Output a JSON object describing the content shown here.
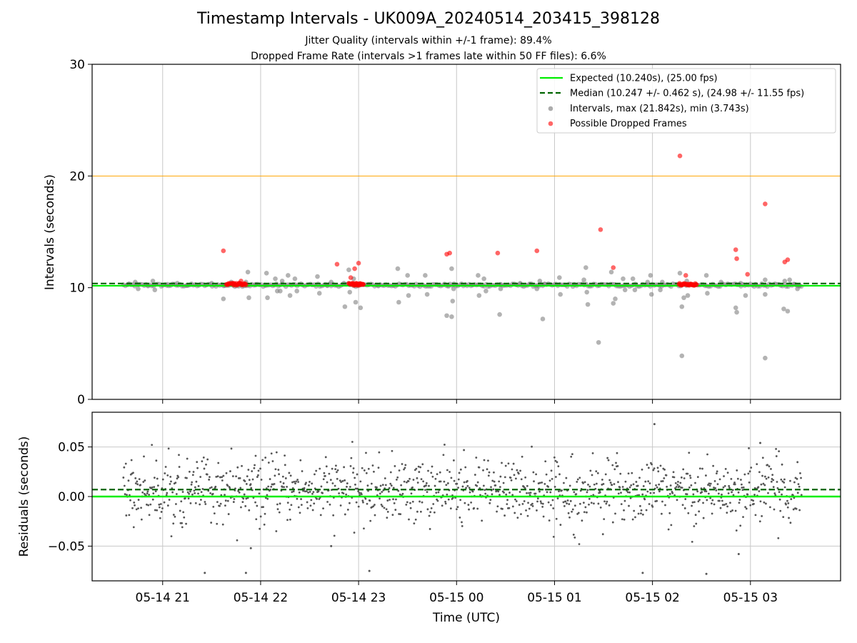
{
  "figure": {
    "title": "Timestamp Intervals - UK009A_20240514_203415_398128",
    "subtitle_1": "Jitter Quality (intervals within +/-1 frame): 89.4%",
    "subtitle_2": "Dropped Frame Rate (intervals >1 frames late within 50 FF files): 6.6%"
  },
  "colors": {
    "expected": "#00ee00",
    "median": "#006400",
    "intervals": "#808080",
    "dropped": "#ff0000",
    "threshold": "#ffa500",
    "residuals": "#555555",
    "grid": "#c8c8c8"
  },
  "chart_data": [
    {
      "type": "scatter",
      "ylabel": "Intervals (seconds)",
      "ylim": [
        0,
        30
      ],
      "yticks": [
        "0",
        "10",
        "20",
        "30"
      ],
      "xlim": [
        20.28,
        3.92
      ],
      "x_unit": "hours UTC (20.x = 05-14 20:xx, 0.x-3.x = 05-15)",
      "xticks": [
        {
          "x": 21,
          "label": "05-14 21"
        },
        {
          "x": 22,
          "label": "05-14 22"
        },
        {
          "x": 23,
          "label": "05-14 23"
        },
        {
          "x": 0,
          "label": "05-15 00"
        },
        {
          "x": 1,
          "label": "05-15 01"
        },
        {
          "x": 2,
          "label": "05-15 02"
        },
        {
          "x": 3,
          "label": "05-15 03"
        }
      ],
      "grid": true,
      "legend_position": "top-right",
      "time_range": [
        "05-14 20:34",
        "05-15 03:33"
      ],
      "reference_lines": [
        {
          "name": "Expected (10.240s), (25.00 fps)",
          "y": 10.24,
          "style": "solid",
          "color": "#00ee00"
        },
        {
          "name": "Median (10.247 +/- 0.462 s), (24.98 +/- 11.55 fps)",
          "y": 10.247,
          "style": "dashed",
          "color": "#006400"
        },
        {
          "name": "",
          "y": 20,
          "style": "thin",
          "color": "#ffa500"
        }
      ],
      "series": [
        {
          "name": "Intervals, max (21.842s), min (3.743s)",
          "marker": "circle",
          "color": "#808080",
          "baseline_band": [
            10.1,
            10.35
          ],
          "points": [
            [
              20.65,
              10.3
            ],
            [
              20.72,
              10.5
            ],
            [
              20.75,
              9.9
            ],
            [
              20.85,
              10.2
            ],
            [
              20.9,
              10.6
            ],
            [
              20.92,
              9.8
            ],
            [
              21.05,
              10.3
            ],
            [
              21.15,
              10.4
            ],
            [
              21.25,
              10.2
            ],
            [
              21.5,
              10.4
            ],
            [
              21.62,
              9.0
            ],
            [
              21.63,
              10.2
            ],
            [
              21.7,
              10.5
            ],
            [
              21.85,
              10.5
            ],
            [
              21.87,
              11.4
            ],
            [
              21.88,
              9.1
            ],
            [
              21.95,
              10.3
            ],
            [
              22.05,
              10.2
            ],
            [
              22.06,
              11.3
            ],
            [
              22.07,
              9.1
            ],
            [
              22.15,
              10.8
            ],
            [
              22.17,
              9.7
            ],
            [
              22.22,
              10.6
            ],
            [
              22.2,
              9.7
            ],
            [
              22.28,
              11.1
            ],
            [
              22.3,
              9.3
            ],
            [
              22.35,
              10.8
            ],
            [
              22.37,
              9.7
            ],
            [
              22.58,
              11.0
            ],
            [
              22.6,
              9.5
            ],
            [
              22.68,
              10.2
            ],
            [
              22.72,
              10.5
            ],
            [
              22.85,
              10.4
            ],
            [
              22.86,
              8.3
            ],
            [
              22.9,
              11.6
            ],
            [
              22.91,
              9.6
            ],
            [
              22.95,
              10.8
            ],
            [
              22.97,
              8.7
            ],
            [
              23.02,
              8.2
            ],
            [
              23.1,
              10.3
            ],
            [
              23.2,
              10.2
            ],
            [
              23.4,
              11.7
            ],
            [
              23.41,
              8.7
            ],
            [
              23.5,
              11.1
            ],
            [
              23.51,
              9.3
            ],
            [
              23.68,
              11.1
            ],
            [
              23.7,
              9.4
            ],
            [
              23.92,
              10.2
            ],
            [
              23.9,
              7.5
            ],
            [
              23.95,
              7.4
            ],
            [
              23.96,
              8.8
            ],
            [
              23.95,
              11.7
            ],
            [
              23.97,
              9.9
            ],
            [
              0.22,
              11.1
            ],
            [
              0.23,
              9.3
            ],
            [
              0.28,
              10.8
            ],
            [
              0.3,
              9.7
            ],
            [
              0.45,
              10.3
            ],
            [
              0.44,
              7.6
            ],
            [
              0.45,
              9.9
            ],
            [
              0.65,
              10.4
            ],
            [
              0.75,
              10.3
            ],
            [
              0.85,
              10.6
            ],
            [
              0.82,
              9.9
            ],
            [
              0.88,
              7.2
            ],
            [
              0.9,
              10.3
            ],
            [
              1.05,
              10.9
            ],
            [
              1.06,
              9.4
            ],
            [
              1.2,
              10.3
            ],
            [
              1.3,
              10.7
            ],
            [
              1.32,
              11.8
            ],
            [
              1.33,
              9.6
            ],
            [
              1.34,
              8.5
            ],
            [
              1.45,
              5.1
            ],
            [
              1.58,
              11.4
            ],
            [
              1.6,
              8.6
            ],
            [
              1.62,
              9.0
            ],
            [
              1.7,
              10.8
            ],
            [
              1.72,
              9.8
            ],
            [
              1.8,
              10.8
            ],
            [
              1.82,
              9.8
            ],
            [
              1.95,
              10.5
            ],
            [
              1.98,
              11.1
            ],
            [
              1.99,
              9.4
            ],
            [
              2.08,
              9.8
            ],
            [
              2.1,
              10.5
            ],
            [
              2.28,
              11.3
            ],
            [
              2.3,
              8.3
            ],
            [
              2.3,
              3.9
            ],
            [
              2.32,
              9.1
            ],
            [
              2.35,
              10.6
            ],
            [
              2.36,
              9.3
            ],
            [
              2.55,
              11.1
            ],
            [
              2.56,
              9.5
            ],
            [
              2.7,
              10.5
            ],
            [
              2.85,
              8.2
            ],
            [
              2.86,
              7.8
            ],
            [
              2.9,
              10.4
            ],
            [
              2.95,
              9.3
            ],
            [
              3.05,
              10.3
            ],
            [
              3.15,
              10.7
            ],
            [
              3.15,
              9.4
            ],
            [
              3.15,
              3.7
            ],
            [
              3.35,
              10.6
            ],
            [
              3.34,
              8.1
            ],
            [
              3.38,
              7.9
            ],
            [
              3.4,
              10.7
            ],
            [
              3.45,
              10.3
            ],
            [
              3.48,
              9.9
            ],
            [
              3.5,
              10.2
            ]
          ]
        },
        {
          "name": "Possible Dropped Frames",
          "marker": "circle",
          "color": "#ff0000",
          "clusters": [
            {
              "x_range": [
                21.65,
                21.85
              ],
              "y": 10.24
            },
            {
              "x_range": [
                22.9,
                23.05
              ],
              "y": 10.24
            },
            {
              "x_range": [
                2.27,
                2.45
              ],
              "y": 10.24
            }
          ],
          "points": [
            [
              21.62,
              13.3
            ],
            [
              21.72,
              10.4
            ],
            [
              21.78,
              10.4
            ],
            [
              21.8,
              10.6
            ],
            [
              22.78,
              12.1
            ],
            [
              22.92,
              10.9
            ],
            [
              22.96,
              11.7
            ],
            [
              23.0,
              12.2
            ],
            [
              23.9,
              13.0
            ],
            [
              23.93,
              13.1
            ],
            [
              0.42,
              13.1
            ],
            [
              0.82,
              13.3
            ],
            [
              1.47,
              15.2
            ],
            [
              1.6,
              11.8
            ],
            [
              2.28,
              21.8
            ],
            [
              2.34,
              11.1
            ],
            [
              2.85,
              13.4
            ],
            [
              2.86,
              12.6
            ],
            [
              2.97,
              11.2
            ],
            [
              3.15,
              17.5
            ],
            [
              3.35,
              12.3
            ],
            [
              3.38,
              12.5
            ]
          ]
        }
      ]
    },
    {
      "type": "scatter",
      "xlabel": "Time (UTC)",
      "ylabel": "Residuals (seconds)",
      "ylim": [
        -0.085,
        0.085
      ],
      "yticks": [
        "−0.05",
        "0.00",
        "0.05"
      ],
      "ytick_values": [
        -0.05,
        0.0,
        0.05
      ],
      "reference_lines": [
        {
          "name": "expected",
          "y": 0.0,
          "style": "solid",
          "color": "#00ee00"
        },
        {
          "name": "median",
          "y": 0.007,
          "style": "dashed",
          "color": "#006400"
        }
      ],
      "series": [
        {
          "name": "residuals",
          "marker": "dot",
          "color": "#555555",
          "n_points": 1200,
          "x_range": [
            20.6,
            3.52
          ],
          "distribution": "centered near 0.007, mostly within -0.035 to 0.045",
          "outliers": [
            [
              21.43,
              -0.077
            ],
            [
              21.85,
              -0.077
            ],
            [
              21.9,
              -0.052
            ],
            [
              22.72,
              -0.05
            ],
            [
              23.11,
              -0.075
            ],
            [
              2.02,
              0.073
            ],
            [
              1.9,
              -0.077
            ],
            [
              2.55,
              -0.078
            ],
            [
              2.88,
              -0.058
            ],
            [
              3.1,
              0.054
            ]
          ]
        }
      ]
    }
  ]
}
